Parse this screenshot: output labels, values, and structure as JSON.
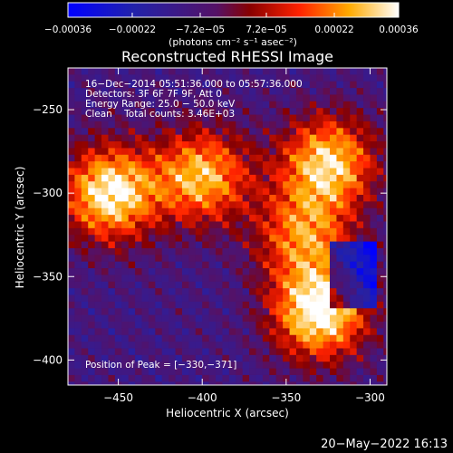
{
  "chart_data": {
    "type": "heatmap",
    "title": "Reconstructed RHESSI Image",
    "xlabel": "Heliocentric X (arcsec)",
    "ylabel": "Heliocentric Y (arcsec)",
    "xlim": [
      -480,
      -290
    ],
    "ylim": [
      -415,
      -225
    ],
    "x_ticks": [
      -450,
      -400,
      -350,
      -300
    ],
    "x_tick_labels": [
      "−450",
      "−400",
      "−350",
      "−300"
    ],
    "y_ticks": [
      -250,
      -300,
      -350,
      -400
    ],
    "y_tick_labels": [
      "−250",
      "−300",
      "−350",
      "−400"
    ],
    "colorbar": {
      "min": -0.00036,
      "max": 0.00036,
      "ticks": [
        -0.00036,
        -0.00022,
        -7.2e-05,
        7.2e-05,
        0.00022,
        0.00036
      ],
      "tick_labels": [
        "−0.00036",
        "−0.00022",
        "−7.2e−05",
        "7.2e−05",
        "0.00022",
        "0.00036"
      ],
      "unit": "(photons cm⁻² s⁻¹ asec⁻²)"
    },
    "sources": [
      {
        "x": -455,
        "y": -300,
        "intensity": 0.00034
      },
      {
        "x": -400,
        "y": -290,
        "intensity": 0.00026
      },
      {
        "x": -325,
        "y": -282,
        "intensity": 0.00029
      },
      {
        "x": -330,
        "y": -371,
        "intensity": 0.00036
      },
      {
        "x": -340,
        "y": -325,
        "intensity": 0.00018
      }
    ],
    "annotations": [
      "16−Dec−2014 05:51:36.000 to 05:57:36.000",
      "Detectors: 3F 6F 7F 9F, Att 0",
      "Energy Range: 25.0 − 50.0 keV",
      "Clean    Total counts: 3.46E+03"
    ],
    "peak_label": "Position of Peak = [−330,−371]",
    "timestamp": "20−May−2022 16:13"
  }
}
